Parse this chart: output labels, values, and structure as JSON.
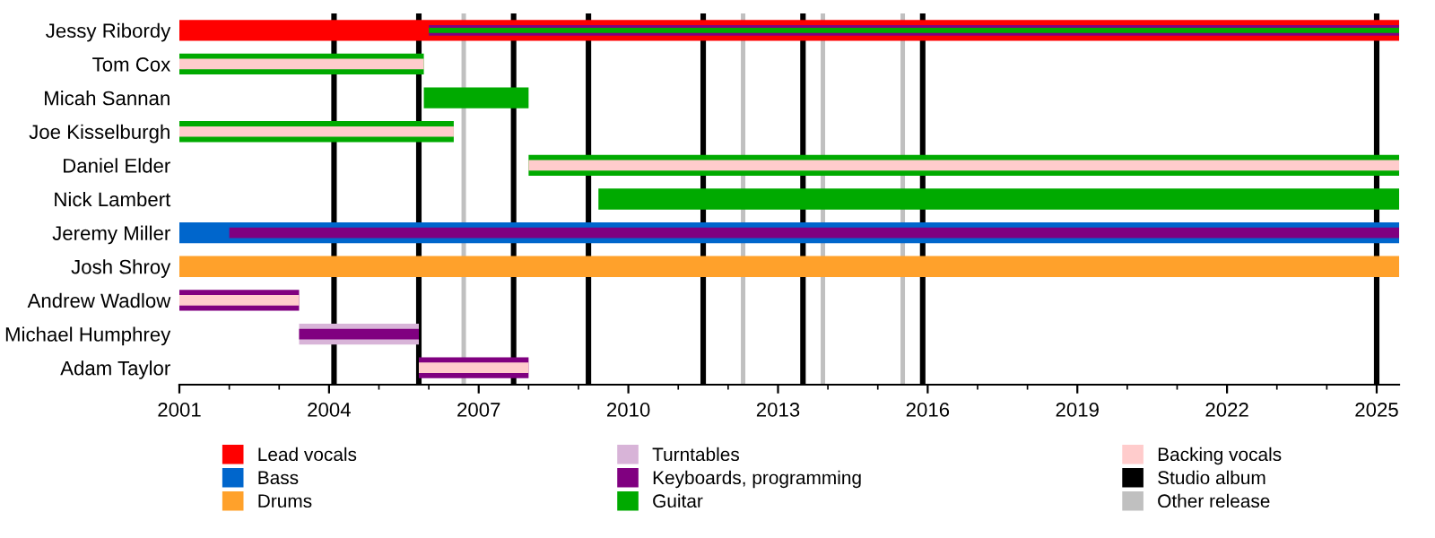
{
  "chart_data": {
    "type": "bar",
    "orientation": "horizontal",
    "categories": [
      "Jessy Ribordy",
      "Tom Cox",
      "Micah Sannan",
      "Joe Kisselburgh",
      "Daniel Elder",
      "Nick Lambert",
      "Jeremy Miller",
      "Josh Shroy",
      "Andrew Wadlow",
      "Michael Humphrey",
      "Adam Taylor"
    ],
    "series": [
      {
        "name": "Lead vocals",
        "color": "#ff0000",
        "base": [
          2001,
          null,
          null,
          null,
          null,
          null,
          null,
          null,
          null,
          null,
          null
        ],
        "values": [
          24.45,
          null,
          null,
          null,
          null,
          null,
          null,
          null,
          null,
          null,
          null
        ]
      },
      {
        "name": "Bass",
        "color": "#0066cc",
        "base": [
          null,
          null,
          null,
          null,
          null,
          null,
          2001,
          null,
          null,
          null,
          null
        ],
        "values": [
          null,
          null,
          null,
          null,
          null,
          null,
          24.45,
          null,
          null,
          null,
          null
        ]
      },
      {
        "name": "Drums",
        "color": "#ffa12b",
        "base": [
          null,
          null,
          null,
          null,
          null,
          null,
          null,
          2001,
          null,
          null,
          null
        ],
        "values": [
          null,
          null,
          null,
          null,
          null,
          null,
          null,
          24.45,
          null,
          null,
          null
        ]
      },
      {
        "name": "Turntables",
        "color": "#d8b4d8",
        "base": [
          null,
          null,
          null,
          null,
          null,
          null,
          null,
          null,
          null,
          2003.4,
          null
        ],
        "values": [
          null,
          null,
          null,
          null,
          null,
          null,
          null,
          null,
          null,
          2.4,
          null
        ]
      },
      {
        "name": "Keyboards, programming",
        "color": "#800080",
        "base": [
          2006,
          null,
          null,
          null,
          null,
          null,
          2002,
          null,
          2001,
          2003.4,
          2005.8
        ],
        "values": [
          19.45,
          null,
          null,
          null,
          null,
          null,
          23.45,
          null,
          2.4,
          2.4,
          2.2
        ]
      },
      {
        "name": "Guitar",
        "color": "#00aa00",
        "base": [
          2006,
          2001,
          2005.9,
          2001,
          2008,
          2009.4,
          null,
          null,
          null,
          null,
          null
        ],
        "values": [
          19.45,
          4.9,
          2.1,
          5.5,
          17.45,
          16.05,
          null,
          null,
          null,
          null,
          null
        ]
      },
      {
        "name": "Backing vocals",
        "color": "#ffcccc",
        "base": [
          null,
          2001,
          null,
          2001,
          2008,
          null,
          null,
          null,
          2001,
          null,
          2005.8
        ],
        "values": [
          null,
          4.9,
          null,
          5.5,
          17.45,
          null,
          null,
          null,
          2.4,
          null,
          2.2
        ]
      }
    ],
    "xlim": [
      2001,
      2025.45
    ],
    "xticks": [
      2001,
      2004,
      2007,
      2010,
      2013,
      2016,
      2019,
      2022,
      2025
    ],
    "ref_lines": [
      {
        "axis": "x",
        "value": 2004.1,
        "label": "Studio album",
        "color": "#000000"
      },
      {
        "axis": "x",
        "value": 2005.8,
        "color": "#000000"
      },
      {
        "axis": "x",
        "value": 2007.7,
        "color": "#000000"
      },
      {
        "axis": "x",
        "value": 2009.2,
        "color": "#000000"
      },
      {
        "axis": "x",
        "value": 2011.5,
        "color": "#000000"
      },
      {
        "axis": "x",
        "value": 2013.5,
        "color": "#000000"
      },
      {
        "axis": "x",
        "value": 2015.9,
        "color": "#000000"
      },
      {
        "axis": "x",
        "value": 2025.0,
        "color": "#000000"
      },
      {
        "axis": "x",
        "value": 2006.7,
        "label": "Other release",
        "color": "#c0c0c0"
      },
      {
        "axis": "x",
        "value": 2012.3,
        "color": "#c0c0c0"
      },
      {
        "axis": "x",
        "value": 2013.9,
        "color": "#c0c0c0"
      },
      {
        "axis": "x",
        "value": 2015.5,
        "color": "#c0c0c0"
      }
    ],
    "legend": "bottom",
    "grid": false
  }
}
